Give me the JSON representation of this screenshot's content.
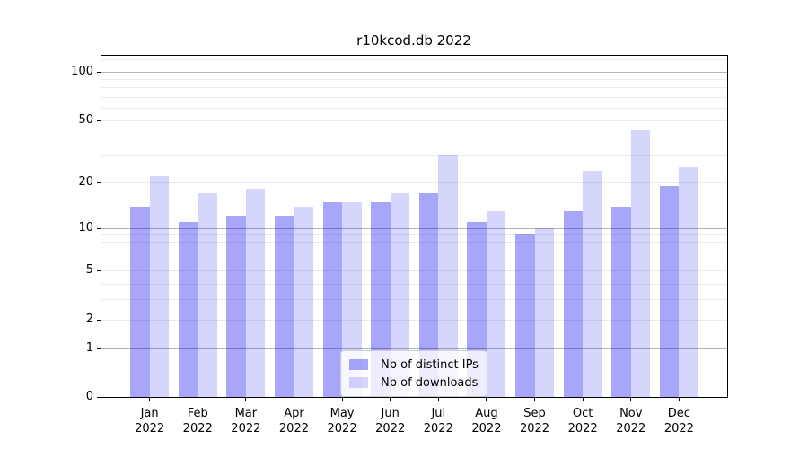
{
  "chart_data": {
    "type": "bar",
    "title": "r10kcod.db 2022",
    "categories": [
      "Jan",
      "Feb",
      "Mar",
      "Apr",
      "May",
      "Jun",
      "Jul",
      "Aug",
      "Sep",
      "Oct",
      "Nov",
      "Dec"
    ],
    "x_tick_year": "2022",
    "series": [
      {
        "name": "Nb of distinct IPs",
        "color": "rgba(13,8,235,0.36)",
        "values": [
          14,
          11,
          12,
          12,
          15,
          15,
          17,
          11,
          9,
          13,
          14,
          19
        ]
      },
      {
        "name": "Nb of downloads",
        "color": "rgba(13,8,235,0.17)",
        "values": [
          22,
          17,
          18,
          14,
          15,
          17,
          30,
          13,
          10,
          24,
          43,
          25
        ]
      }
    ],
    "xlabel": "",
    "ylabel": "",
    "yscale": "log10(1+y)",
    "ylim": [
      0,
      126
    ],
    "ytick_labels": [
      0,
      1,
      2,
      5,
      10,
      20,
      50,
      100
    ],
    "grid": {
      "on": true,
      "major_values": [
        1,
        10,
        100
      ],
      "minor_values": [
        2,
        3,
        4,
        5,
        6,
        7,
        8,
        9,
        20,
        30,
        40,
        50,
        60,
        70,
        80,
        90,
        110,
        120
      ],
      "major_color": "#b3b3b3",
      "minor_color": "#ebebeb"
    },
    "legend": {
      "location": "lower-center",
      "background": "rgba(255,255,255,0.8)",
      "border_color": "#cccccc"
    },
    "axis_color": "#000000",
    "text_color": "#000000"
  }
}
